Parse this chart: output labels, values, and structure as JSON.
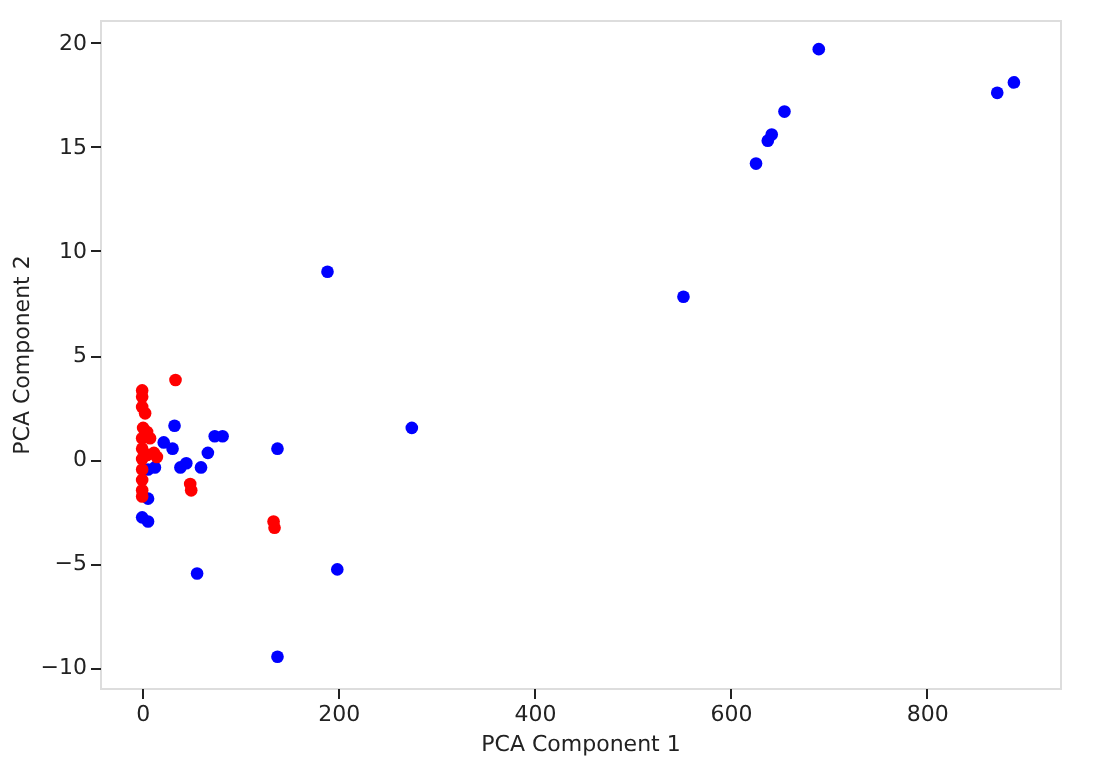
{
  "chart_data": {
    "type": "scatter",
    "xlabel": "PCA Component 1",
    "ylabel": "PCA Component 2",
    "xlim": [
      -43,
      936
    ],
    "ylim": [
      -11,
      21.1
    ],
    "xticks": [
      0,
      200,
      400,
      600,
      800
    ],
    "yticks": [
      -10,
      -5,
      0,
      5,
      10,
      15,
      20
    ],
    "grid": false,
    "legend": false,
    "marker": "circle",
    "series": [
      {
        "color": "#0000ff",
        "x": [
          690,
          872,
          889,
          655,
          642,
          638,
          626,
          189,
          552,
          275,
          138,
          33,
          74,
          82,
          67,
          60,
          45,
          39,
          31,
          22,
          13,
          6,
          6,
          0,
          6,
          56,
          199,
          138
        ],
        "values": [
          19.7,
          17.6,
          18.1,
          16.7,
          15.6,
          15.3,
          14.2,
          9.0,
          7.8,
          1.5,
          0.5,
          1.6,
          1.1,
          1.1,
          0.3,
          -0.4,
          -0.2,
          -0.4,
          0.5,
          0.8,
          -0.4,
          -0.5,
          -1.9,
          -2.8,
          -3.0,
          -5.5,
          -5.3,
          -9.5
        ]
      },
      {
        "color": "#ff0000",
        "x": [
          34,
          0,
          0,
          0,
          1,
          0,
          0,
          0,
          0,
          0,
          0,
          0,
          5,
          8,
          12,
          15,
          5,
          3,
          49,
          50,
          134,
          135
        ],
        "values": [
          3.8,
          3.3,
          3.0,
          2.5,
          1.5,
          1.0,
          0.5,
          0,
          -0.5,
          -1.0,
          -1.5,
          -1.8,
          1.3,
          1.0,
          0.3,
          0.1,
          0.2,
          2.2,
          -1.2,
          -1.5,
          -3.0,
          -3.3
        ]
      }
    ]
  }
}
